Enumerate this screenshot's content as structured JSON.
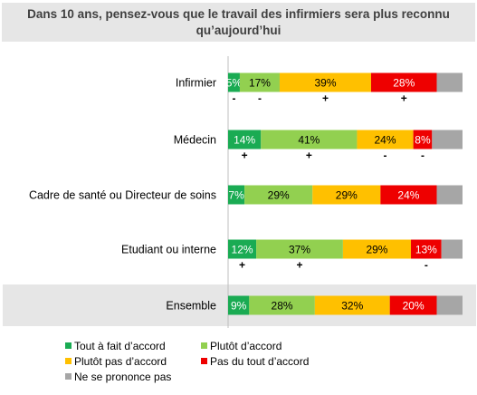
{
  "title": "Dans 10 ans, pensez-vous que le travail des infirmiers sera plus reconnu qu’aujourd’hui",
  "colors": {
    "Tout à fait d’accord": "#1aab53",
    "Plutôt d’accord": "#92d050",
    "Plutôt pas d’accord": "#ffc000",
    "Pas du tout d’accord": "#ee0000",
    "Ne se prononce pas": "#a6a6a6",
    "highlight_band": "#e6e6e6"
  },
  "legend": [
    "Tout à fait d’accord",
    "Plutôt d’accord",
    "Plutôt pas d’accord",
    "Pas du tout d’accord",
    "Ne se prononce pas"
  ],
  "chart_data": {
    "type": "bar",
    "orientation": "horizontal",
    "stacked": true,
    "xlim": [
      0,
      100
    ],
    "categories": [
      "Infirmier",
      "Médecin",
      "Cadre de santé ou Directeur de soins",
      "Etudiant ou interne",
      "Ensemble"
    ],
    "highlighted_category": "Ensemble",
    "series": [
      {
        "name": "Tout à fait d’accord",
        "values": [
          5,
          14,
          7,
          12,
          9
        ],
        "labels": [
          "5%",
          "14%",
          "7%",
          "12%",
          "9%"
        ]
      },
      {
        "name": "Plutôt d’accord",
        "values": [
          17,
          41,
          29,
          37,
          28
        ],
        "labels": [
          "17%",
          "41%",
          "29%",
          "37%",
          "28%"
        ]
      },
      {
        "name": "Plutôt pas d’accord",
        "values": [
          39,
          24,
          29,
          29,
          32
        ],
        "labels": [
          "39%",
          "24%",
          "29%",
          "29%",
          "32%"
        ]
      },
      {
        "name": "Pas du tout d’accord",
        "values": [
          28,
          8,
          24,
          13,
          20
        ],
        "labels": [
          "28%",
          "8%",
          "24%",
          "13%",
          "20%"
        ]
      },
      {
        "name": "Ne se prononce pas",
        "values": [
          11,
          13,
          11,
          9,
          11
        ],
        "labels": [
          "",
          "",
          "",
          "",
          ""
        ]
      }
    ],
    "significance_marks": [
      [
        "-",
        "-",
        "+",
        "+",
        ""
      ],
      [
        "+",
        "+",
        "-",
        "-",
        ""
      ],
      [
        "",
        "",
        "",
        "",
        ""
      ],
      [
        "+",
        "+",
        "",
        "-",
        ""
      ],
      [
        "",
        "",
        "",
        "",
        ""
      ]
    ]
  }
}
